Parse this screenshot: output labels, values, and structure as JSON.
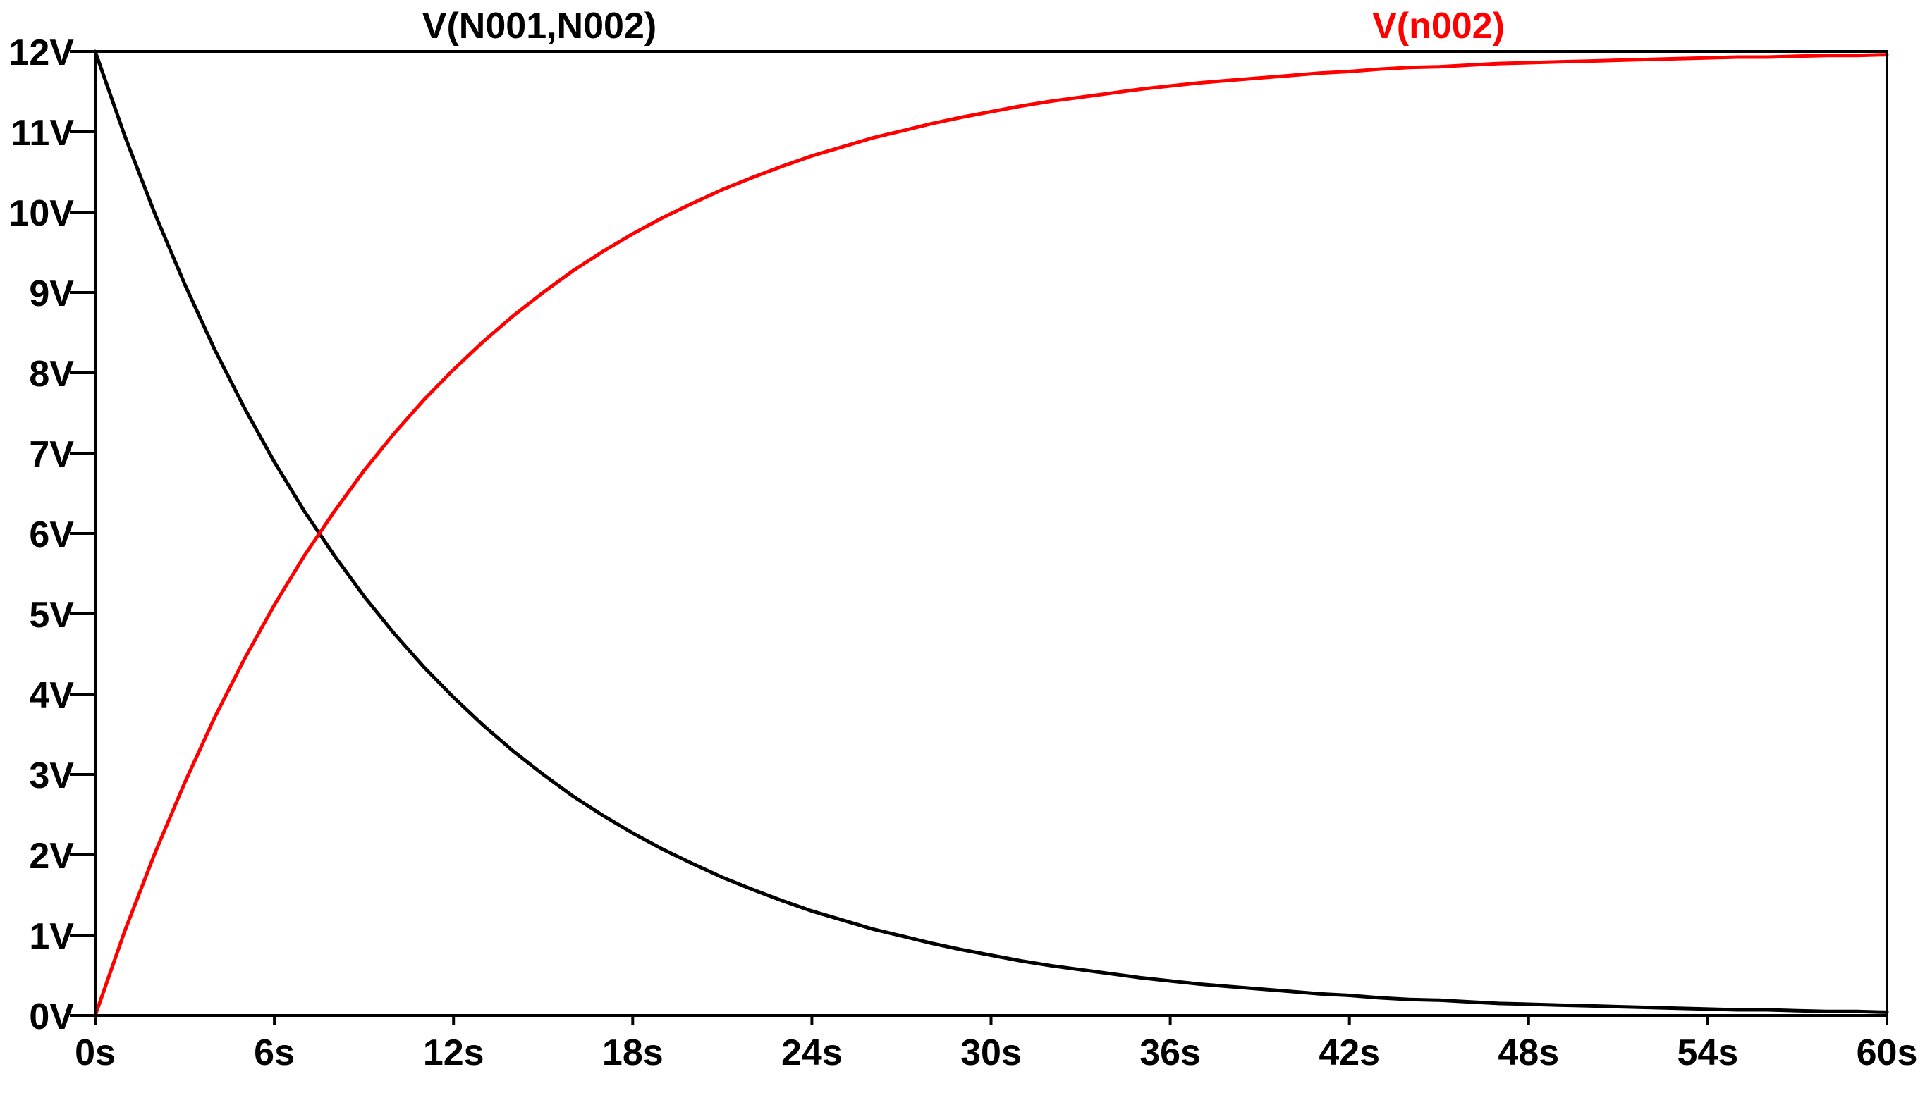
{
  "chart_data": {
    "type": "line",
    "xlim": [
      0,
      60
    ],
    "ylim": [
      0,
      12
    ],
    "x_ticks": [
      0,
      6,
      12,
      18,
      24,
      30,
      36,
      42,
      48,
      54,
      60
    ],
    "x_tick_labels": [
      "0s",
      "6s",
      "12s",
      "18s",
      "24s",
      "30s",
      "36s",
      "42s",
      "48s",
      "54s",
      "60s"
    ],
    "y_ticks": [
      0,
      1,
      2,
      3,
      4,
      5,
      6,
      7,
      8,
      9,
      10,
      11,
      12
    ],
    "y_tick_labels": [
      "0V",
      "1V",
      "2V",
      "3V",
      "4V",
      "5V",
      "6V",
      "7V",
      "8V",
      "9V",
      "10V",
      "11V",
      "12V"
    ],
    "grid": false,
    "background": "#ffffff",
    "axis_color": "#000000",
    "series": [
      {
        "name": "V(N001,N002)",
        "color": "#000000",
        "x": [
          0,
          1,
          2,
          3,
          4,
          5,
          6,
          7,
          8,
          9,
          10,
          11,
          12,
          13,
          14,
          15,
          16,
          17,
          18,
          19,
          20,
          21,
          22,
          23,
          24,
          25,
          26,
          27,
          28,
          29,
          30,
          31,
          32,
          33,
          34,
          35,
          36,
          37,
          38,
          39,
          40,
          41,
          42,
          43,
          44,
          45,
          46,
          47,
          48,
          49,
          50,
          51,
          52,
          53,
          54,
          55,
          56,
          57,
          58,
          59,
          60
        ],
        "y": [
          12.0,
          10.94,
          9.98,
          9.1,
          8.29,
          7.56,
          6.89,
          6.28,
          5.73,
          5.22,
          4.76,
          4.34,
          3.96,
          3.61,
          3.29,
          3.0,
          2.73,
          2.49,
          2.27,
          2.07,
          1.89,
          1.72,
          1.57,
          1.43,
          1.3,
          1.19,
          1.08,
          0.99,
          0.9,
          0.82,
          0.75,
          0.68,
          0.62,
          0.57,
          0.52,
          0.47,
          0.43,
          0.39,
          0.36,
          0.33,
          0.3,
          0.27,
          0.25,
          0.22,
          0.2,
          0.19,
          0.17,
          0.15,
          0.14,
          0.13,
          0.12,
          0.11,
          0.1,
          0.09,
          0.08,
          0.07,
          0.07,
          0.06,
          0.05,
          0.05,
          0.04
        ]
      },
      {
        "name": "V(n002)",
        "color": "#ff0000",
        "x": [
          0,
          1,
          2,
          3,
          4,
          5,
          6,
          7,
          8,
          9,
          10,
          11,
          12,
          13,
          14,
          15,
          16,
          17,
          18,
          19,
          20,
          21,
          22,
          23,
          24,
          25,
          26,
          27,
          28,
          29,
          30,
          31,
          32,
          33,
          34,
          35,
          36,
          37,
          38,
          39,
          40,
          41,
          42,
          43,
          44,
          45,
          46,
          47,
          48,
          49,
          50,
          51,
          52,
          53,
          54,
          55,
          56,
          57,
          58,
          59,
          60
        ],
        "y": [
          0.0,
          1.06,
          2.02,
          2.9,
          3.71,
          4.44,
          5.11,
          5.72,
          6.27,
          6.78,
          7.24,
          7.66,
          8.04,
          8.39,
          8.71,
          9.0,
          9.27,
          9.51,
          9.73,
          9.93,
          10.11,
          10.28,
          10.43,
          10.57,
          10.7,
          10.81,
          10.92,
          11.01,
          11.1,
          11.18,
          11.25,
          11.32,
          11.38,
          11.43,
          11.48,
          11.53,
          11.57,
          11.61,
          11.64,
          11.67,
          11.7,
          11.73,
          11.75,
          11.78,
          11.8,
          11.81,
          11.83,
          11.85,
          11.86,
          11.87,
          11.88,
          11.89,
          11.9,
          11.91,
          11.92,
          11.93,
          11.93,
          11.94,
          11.95,
          11.95,
          11.96
        ]
      }
    ]
  }
}
